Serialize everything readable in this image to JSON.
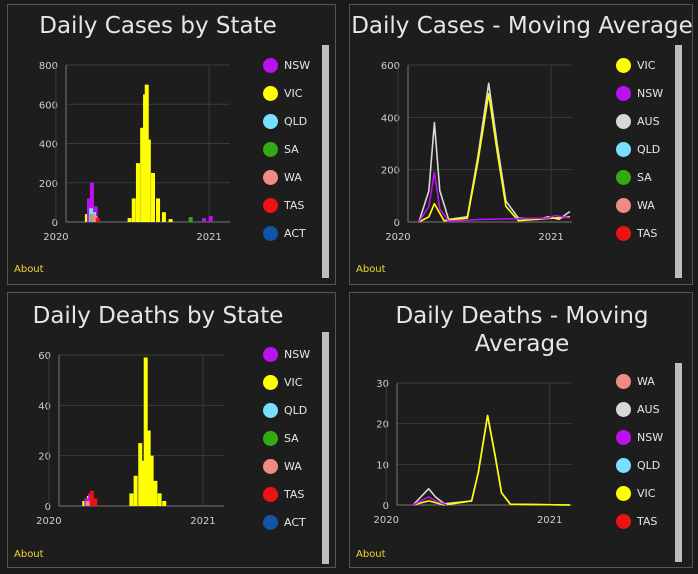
{
  "about_label": "About",
  "panels": [
    {
      "title_lines": [
        "Daily Cases by State"
      ],
      "legend": [
        {
          "label": "NSW",
          "color": "#bb11ee"
        },
        {
          "label": "VIC",
          "color": "#ffff00"
        },
        {
          "label": "QLD",
          "color": "#77dfff"
        },
        {
          "label": "SA",
          "color": "#33aa11"
        },
        {
          "label": "WA",
          "color": "#f28a84"
        },
        {
          "label": "TAS",
          "color": "#ee1111"
        },
        {
          "label": "ACT",
          "color": "#1155aa"
        }
      ]
    },
    {
      "title_lines": [
        "Daily Cases - Moving Average"
      ],
      "legend": [
        {
          "label": "VIC",
          "color": "#ffff00"
        },
        {
          "label": "NSW",
          "color": "#bb11ee"
        },
        {
          "label": "AUS",
          "color": "#d8d8d8"
        },
        {
          "label": "QLD",
          "color": "#77dfff"
        },
        {
          "label": "SA",
          "color": "#33aa11"
        },
        {
          "label": "WA",
          "color": "#f28a84"
        },
        {
          "label": "TAS",
          "color": "#ee1111"
        }
      ]
    },
    {
      "title_lines": [
        "Daily Deaths by State"
      ],
      "legend": [
        {
          "label": "NSW",
          "color": "#bb11ee"
        },
        {
          "label": "VIC",
          "color": "#ffff00"
        },
        {
          "label": "QLD",
          "color": "#77dfff"
        },
        {
          "label": "SA",
          "color": "#33aa11"
        },
        {
          "label": "WA",
          "color": "#f28a84"
        },
        {
          "label": "TAS",
          "color": "#ee1111"
        },
        {
          "label": "ACT",
          "color": "#1155aa"
        }
      ]
    },
    {
      "title_lines": [
        "Daily Deaths - Moving",
        "Average"
      ],
      "legend": [
        {
          "label": "WA",
          "color": "#f28a84"
        },
        {
          "label": "AUS",
          "color": "#d8d8d8"
        },
        {
          "label": "NSW",
          "color": "#bb11ee"
        },
        {
          "label": "QLD",
          "color": "#77dfff"
        },
        {
          "label": "VIC",
          "color": "#ffff00"
        },
        {
          "label": "TAS",
          "color": "#ee1111"
        }
      ]
    }
  ],
  "chart_data": [
    {
      "type": "bar",
      "title": "Daily Cases by State",
      "x_ticks": [
        "2020",
        "2021"
      ],
      "y_ticks": [
        0,
        200,
        400,
        600,
        800
      ],
      "ylim": [
        0,
        800
      ],
      "x_range": [
        "2020-01-25",
        "2021-02-20"
      ],
      "grid": true,
      "legend_placement": "right",
      "series": [
        {
          "name": "VIC",
          "color": "#ffff00",
          "points": [
            [
              "2020-03-15",
              40
            ],
            [
              "2020-03-25",
              80
            ],
            [
              "2020-06-25",
              20
            ],
            [
              "2020-07-05",
              120
            ],
            [
              "2020-07-15",
              300
            ],
            [
              "2020-07-25",
              480
            ],
            [
              "2020-08-01",
              650
            ],
            [
              "2020-08-05",
              700
            ],
            [
              "2020-08-10",
              420
            ],
            [
              "2020-08-20",
              250
            ],
            [
              "2020-09-01",
              120
            ],
            [
              "2020-09-15",
              50
            ],
            [
              "2020-10-01",
              15
            ]
          ]
        },
        {
          "name": "NSW",
          "color": "#bb11ee",
          "points": [
            [
              "2020-03-20",
              120
            ],
            [
              "2020-03-27",
              200
            ],
            [
              "2020-04-05",
              80
            ],
            [
              "2020-12-20",
              20
            ],
            [
              "2021-01-05",
              30
            ]
          ]
        },
        {
          "name": "QLD",
          "color": "#77dfff",
          "points": [
            [
              "2020-03-25",
              70
            ],
            [
              "2020-04-01",
              50
            ]
          ]
        },
        {
          "name": "SA",
          "color": "#33aa11",
          "points": [
            [
              "2020-03-28",
              40
            ],
            [
              "2020-11-18",
              25
            ]
          ]
        },
        {
          "name": "WA",
          "color": "#f28a84",
          "points": [
            [
              "2020-03-30",
              40
            ],
            [
              "2020-04-05",
              30
            ]
          ]
        },
        {
          "name": "TAS",
          "color": "#ee1111",
          "points": [
            [
              "2020-04-10",
              20
            ]
          ]
        }
      ]
    },
    {
      "type": "line",
      "title": "Daily Cases - Moving Average",
      "x_ticks": [
        "2020",
        "2021"
      ],
      "y_ticks": [
        0,
        200,
        400,
        600
      ],
      "ylim": [
        0,
        600
      ],
      "x_range": [
        "2020-01-25",
        "2021-02-20"
      ],
      "grid": true,
      "legend_placement": "right",
      "series": [
        {
          "name": "AUS",
          "color": "#d8d8d8",
          "points": [
            [
              "2020-02-20",
              0
            ],
            [
              "2020-03-15",
              120
            ],
            [
              "2020-03-28",
              380
            ],
            [
              "2020-04-10",
              120
            ],
            [
              "2020-05-01",
              10
            ],
            [
              "2020-06-15",
              20
            ],
            [
              "2020-07-10",
              250
            ],
            [
              "2020-08-05",
              530
            ],
            [
              "2020-08-25",
              300
            ],
            [
              "2020-09-15",
              80
            ],
            [
              "2020-10-15",
              15
            ],
            [
              "2020-12-01",
              10
            ],
            [
              "2020-12-25",
              20
            ],
            [
              "2021-01-20",
              10
            ],
            [
              "2021-02-15",
              40
            ]
          ]
        },
        {
          "name": "VIC",
          "color": "#ffff00",
          "points": [
            [
              "2020-02-20",
              0
            ],
            [
              "2020-03-15",
              20
            ],
            [
              "2020-03-28",
              70
            ],
            [
              "2020-04-20",
              5
            ],
            [
              "2020-06-15",
              15
            ],
            [
              "2020-07-10",
              230
            ],
            [
              "2020-08-05",
              490
            ],
            [
              "2020-08-25",
              270
            ],
            [
              "2020-09-15",
              60
            ],
            [
              "2020-10-15",
              5
            ],
            [
              "2021-02-15",
              20
            ]
          ]
        },
        {
          "name": "NSW",
          "color": "#bb11ee",
          "points": [
            [
              "2020-02-20",
              0
            ],
            [
              "2020-03-15",
              60
            ],
            [
              "2020-03-28",
              190
            ],
            [
              "2020-04-10",
              50
            ],
            [
              "2020-05-01",
              3
            ],
            [
              "2020-07-15",
              10
            ],
            [
              "2020-12-25",
              15
            ],
            [
              "2021-01-10",
              25
            ],
            [
              "2021-02-15",
              15
            ]
          ]
        }
      ]
    },
    {
      "type": "bar",
      "title": "Daily Deaths by State",
      "x_ticks": [
        "2020",
        "2021"
      ],
      "y_ticks": [
        0,
        20,
        40,
        60
      ],
      "ylim": [
        0,
        60
      ],
      "x_range": [
        "2020-01-25",
        "2021-02-20"
      ],
      "grid": true,
      "legend_placement": "right",
      "series": [
        {
          "name": "VIC",
          "color": "#ffff00",
          "points": [
            [
              "2020-03-25",
              2
            ],
            [
              "2020-04-05",
              4
            ],
            [
              "2020-07-15",
              5
            ],
            [
              "2020-07-25",
              12
            ],
            [
              "2020-08-05",
              25
            ],
            [
              "2020-08-12",
              18
            ],
            [
              "2020-08-18",
              59
            ],
            [
              "2020-08-25",
              30
            ],
            [
              "2020-09-01",
              20
            ],
            [
              "2020-09-10",
              10
            ],
            [
              "2020-09-20",
              5
            ],
            [
              "2020-10-01",
              2
            ]
          ]
        },
        {
          "name": "NSW",
          "color": "#bb11ee",
          "points": [
            [
              "2020-03-30",
              3
            ],
            [
              "2020-04-08",
              5
            ],
            [
              "2020-04-15",
              2
            ]
          ]
        },
        {
          "name": "TAS",
          "color": "#ee1111",
          "points": [
            [
              "2020-04-12",
              6
            ],
            [
              "2020-04-20",
              3
            ]
          ]
        },
        {
          "name": "WA",
          "color": "#f28a84",
          "points": [
            [
              "2020-04-02",
              2
            ]
          ]
        }
      ]
    },
    {
      "type": "line",
      "title": "Daily Deaths - Moving Average",
      "x_ticks": [
        "2020",
        "2021"
      ],
      "y_ticks": [
        0,
        10,
        20,
        30
      ],
      "ylim": [
        0,
        30
      ],
      "x_range": [
        "2020-01-25",
        "2021-02-20"
      ],
      "grid": true,
      "legend_placement": "right",
      "series": [
        {
          "name": "AUS",
          "color": "#d8d8d8",
          "points": [
            [
              "2020-03-01",
              0
            ],
            [
              "2020-04-05",
              4
            ],
            [
              "2020-04-20",
              2
            ],
            [
              "2020-05-10",
              0.3
            ],
            [
              "2020-07-10",
              1
            ],
            [
              "2020-07-25",
              8
            ],
            [
              "2020-08-15",
              22
            ],
            [
              "2020-09-01",
              12
            ],
            [
              "2020-09-15",
              3
            ],
            [
              "2020-10-05",
              0.2
            ],
            [
              "2021-02-15",
              0
            ]
          ]
        },
        {
          "name": "VIC",
          "color": "#ffff00",
          "points": [
            [
              "2020-03-01",
              0
            ],
            [
              "2020-04-05",
              1
            ],
            [
              "2020-05-10",
              0
            ],
            [
              "2020-07-10",
              1
            ],
            [
              "2020-07-25",
              8
            ],
            [
              "2020-08-15",
              22
            ],
            [
              "2020-09-01",
              12
            ],
            [
              "2020-09-15",
              3
            ],
            [
              "2020-10-05",
              0.2
            ],
            [
              "2021-02-15",
              0
            ]
          ]
        },
        {
          "name": "NSW",
          "color": "#bb11ee",
          "points": [
            [
              "2020-03-01",
              0
            ],
            [
              "2020-04-05",
              2
            ],
            [
              "2020-04-20",
              1
            ],
            [
              "2020-05-15",
              0
            ]
          ]
        }
      ]
    }
  ]
}
